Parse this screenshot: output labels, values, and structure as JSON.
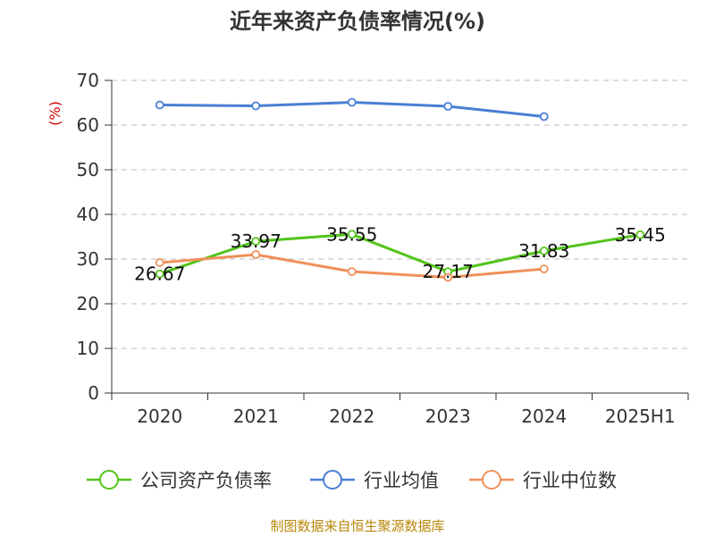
{
  "chart_data": {
    "type": "line",
    "title": "近年来资产负债率情况(%)",
    "ylabel": "(%)",
    "xlabel": "",
    "categories": [
      "2020",
      "2021",
      "2022",
      "2023",
      "2024",
      "2025H1"
    ],
    "ylim": [
      0,
      70
    ],
    "yticks": [
      0,
      10,
      20,
      30,
      40,
      50,
      60,
      70
    ],
    "grid": true,
    "legend_position": "bottom",
    "series": [
      {
        "name": "公司资产负债率",
        "color": "#52c41a",
        "values": [
          26.67,
          33.97,
          35.55,
          27.17,
          31.83,
          35.45
        ],
        "labels": [
          "26.67",
          "33.97",
          "35.55",
          "27.17",
          "31.83",
          "35.45"
        ]
      },
      {
        "name": "行业均值",
        "color": "#4a7fd4",
        "values": [
          64.5,
          64.3,
          65.1,
          64.2,
          61.9,
          null
        ]
      },
      {
        "name": "行业中位数",
        "color": "#f0905a",
        "values": [
          29.2,
          31.0,
          27.2,
          25.9,
          27.8,
          null
        ]
      }
    ]
  },
  "footer": {
    "source": "制图数据来自恒生聚源数据库"
  }
}
